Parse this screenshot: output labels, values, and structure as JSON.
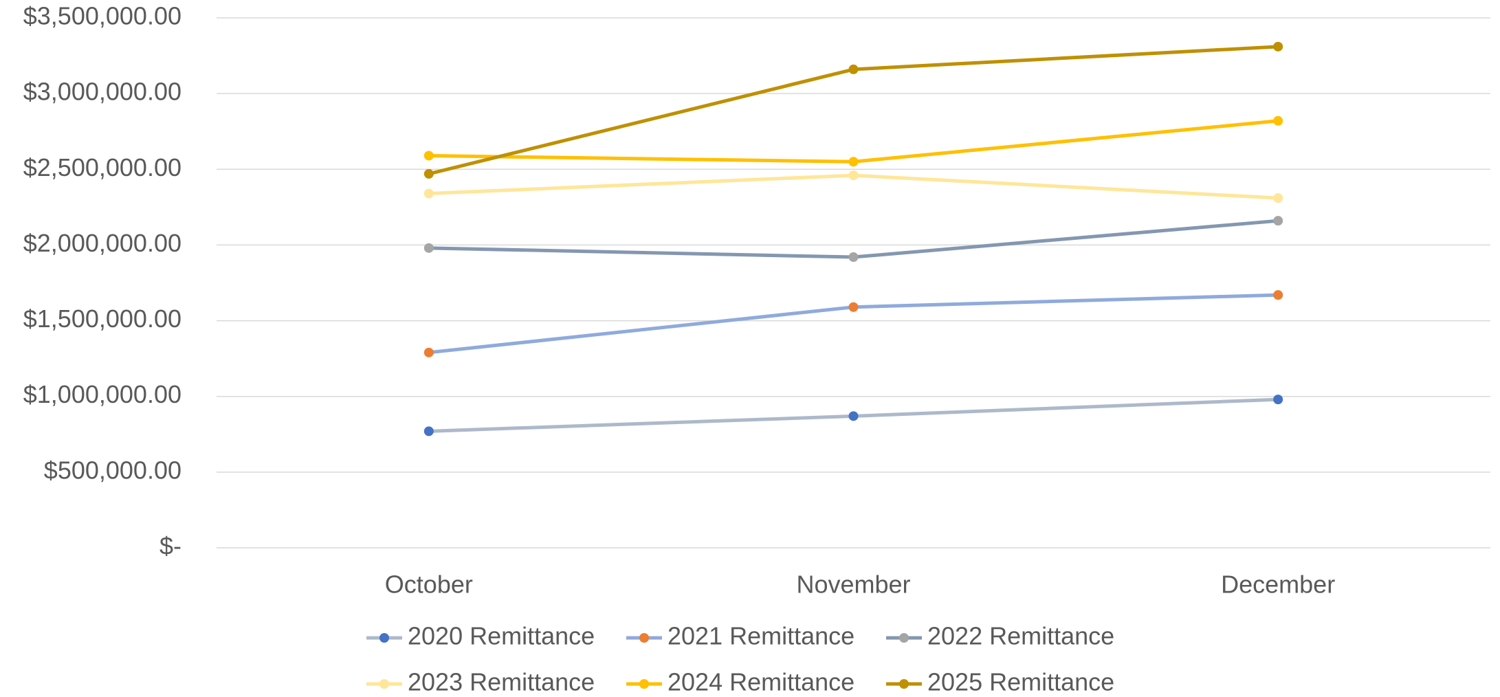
{
  "chart_data": {
    "type": "line",
    "categories": [
      "October",
      "November",
      "December"
    ],
    "series": [
      {
        "name": "2020 Remittance",
        "color": "#adb9ca",
        "marker_color": "#4472c4",
        "values": [
          770000,
          870000,
          980000
        ]
      },
      {
        "name": "2021 Remittance",
        "color": "#8faadc",
        "marker_color": "#ed7d31",
        "values": [
          1290000,
          1590000,
          1670000
        ]
      },
      {
        "name": "2022 Remittance",
        "color": "#8497b0",
        "marker_color": "#a5a5a5",
        "values": [
          1980000,
          1920000,
          2160000
        ]
      },
      {
        "name": "2023 Remittance",
        "color": "#ffe699",
        "marker_color": "#ffe699",
        "values": [
          2340000,
          2460000,
          2310000
        ]
      },
      {
        "name": "2024 Remittance",
        "color": "#ffc000",
        "marker_color": "#ffc000",
        "values": [
          2590000,
          2550000,
          2820000
        ]
      },
      {
        "name": "2025 Remittance",
        "color": "#bf9000",
        "marker_color": "#bf9000",
        "values": [
          2470000,
          3160000,
          3310000
        ]
      }
    ],
    "ylim": [
      0,
      3500000
    ],
    "yticks": [
      {
        "value": 0,
        "label": "$-"
      },
      {
        "value": 500000,
        "label": "$500,000.00"
      },
      {
        "value": 1000000,
        "label": "$1,000,000.00"
      },
      {
        "value": 1500000,
        "label": "$1,500,000.00"
      },
      {
        "value": 2000000,
        "label": "$2,000,000.00"
      },
      {
        "value": 2500000,
        "label": "$2,500,000.00"
      },
      {
        "value": 3000000,
        "label": "$3,000,000.00"
      },
      {
        "value": 3500000,
        "label": "$3,500,000.00"
      }
    ],
    "grid": true,
    "legend": "bottom"
  }
}
